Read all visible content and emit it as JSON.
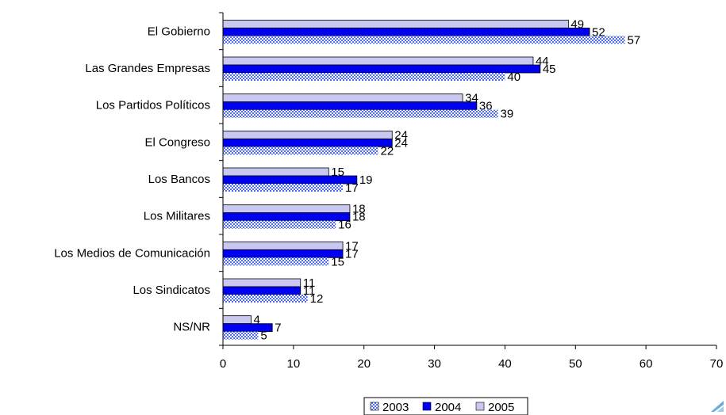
{
  "chart_data": {
    "type": "bar",
    "orientation": "horizontal",
    "categories": [
      "El Gobierno",
      "Las Grandes Empresas",
      "Los Partidos Políticos",
      "El Congreso",
      "Los Bancos",
      "Los Militares",
      "Los Medios de Comunicación",
      "Los Sindicatos",
      "NS/NR"
    ],
    "series": [
      {
        "name": "2003",
        "values": [
          57,
          40,
          39,
          22,
          17,
          16,
          15,
          12,
          5
        ],
        "color": "#4a6cf0",
        "pattern": "checker"
      },
      {
        "name": "2004",
        "values": [
          52,
          45,
          36,
          24,
          19,
          18,
          17,
          11,
          7
        ],
        "color": "#0000f0"
      },
      {
        "name": "2005",
        "values": [
          49,
          44,
          34,
          24,
          15,
          18,
          17,
          11,
          4
        ],
        "color": "#c8c8f0"
      }
    ],
    "xlim": [
      0,
      70
    ],
    "xticks": [
      0,
      10,
      20,
      30,
      40,
      50,
      60,
      70
    ],
    "legend_position": "bottom",
    "grid": false
  }
}
